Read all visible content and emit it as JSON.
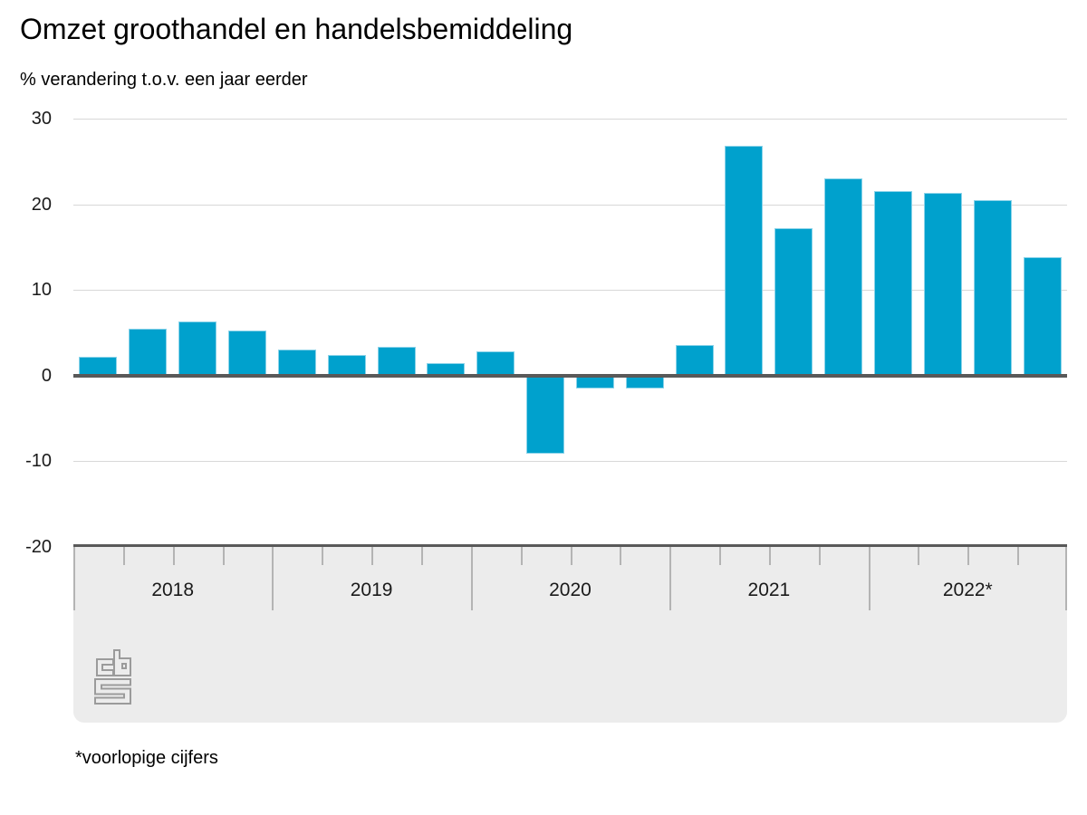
{
  "header": {
    "title": "Omzet groothandel en handelsbemiddeling",
    "subtitle": "% verandering t.o.v. een jaar eerder"
  },
  "footer": {
    "note": "*voorlopige cijfers"
  },
  "branding": {
    "logo": "cbs-logo",
    "logo_color": "#9b9b9b"
  },
  "chart_data": {
    "type": "bar",
    "title": "Omzet groothandel en handelsbemiddeling",
    "subtitle": "% verandering t.o.v. een jaar eerder",
    "footnote": "*voorlopige cijfers",
    "xlabel": "",
    "ylabel": "% verandering t.o.v. een jaar eerder",
    "ylim": [
      -20,
      30
    ],
    "yticks": [
      {
        "label": "30",
        "value": 30
      },
      {
        "label": "20",
        "value": 20
      },
      {
        "label": "10",
        "value": 10
      },
      {
        "label": "0",
        "value": 0
      },
      {
        "label": "-10",
        "value": -10
      },
      {
        "label": "-20",
        "value": -20
      }
    ],
    "grid": true,
    "legend_position": "none",
    "categories": [
      "2018",
      "2019",
      "2020",
      "2021",
      "2022*"
    ],
    "series": [
      {
        "name": "2018",
        "quarters": [
          2.2,
          5.5,
          6.3,
          5.3
        ]
      },
      {
        "name": "2019",
        "quarters": [
          3.0,
          2.4,
          3.4,
          1.5
        ]
      },
      {
        "name": "2020",
        "quarters": [
          2.8,
          -9.1,
          -1.5,
          -1.5
        ]
      },
      {
        "name": "2021",
        "quarters": [
          3.6,
          26.8,
          17.2,
          23.0
        ]
      },
      {
        "name": "2022*",
        "quarters": [
          21.5,
          21.3,
          20.5,
          13.8
        ]
      }
    ],
    "colors": {
      "bar_fill": "#00a1cd",
      "bar_border": "#8bd3e9",
      "zero_line": "#595959",
      "gridline": "#d8d8d8",
      "axis_band": "#ececec",
      "tick": "#b4b4b4"
    }
  }
}
